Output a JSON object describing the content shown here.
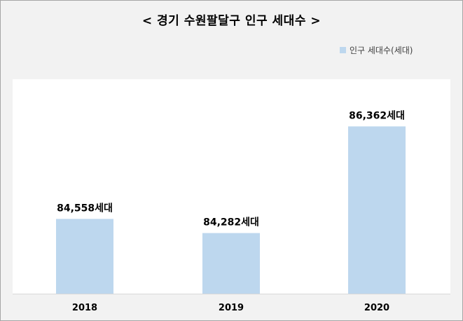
{
  "chart_data": {
    "type": "bar",
    "title": "< 경기 수원팔달구 인구 세대수 >",
    "categories": [
      "2018",
      "2019",
      "2020"
    ],
    "series": [
      {
        "name": "인구 세대수(세대)",
        "values": [
          84558,
          84282,
          86362
        ],
        "labels": [
          "84,558세대",
          "84,282세대",
          "86,362세대"
        ]
      }
    ],
    "xlabel": "",
    "ylabel": "",
    "ylim": [
      83100,
      86900
    ],
    "grid": false,
    "legend_position": "top-right",
    "colors": {
      "bar": "#bdd7ee",
      "background": "#f2f2f2",
      "plot_background": "#ffffff",
      "axis": "#d9d9d9"
    }
  }
}
